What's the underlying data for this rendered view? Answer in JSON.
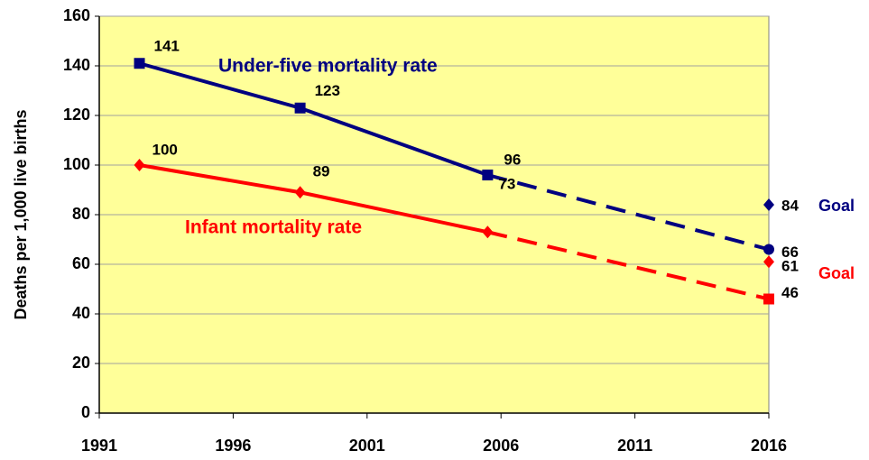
{
  "chart_data": {
    "type": "line",
    "y_label": "Deaths per 1,000 live births",
    "xlim": [
      1991,
      2016
    ],
    "xticks": [
      1991,
      1996,
      2001,
      2006,
      2011,
      2016
    ],
    "ylim": [
      0,
      160
    ],
    "yticks": [
      0,
      20,
      40,
      60,
      80,
      100,
      120,
      140,
      160
    ],
    "grid": true,
    "background": "#ffff99",
    "series": [
      {
        "name": "Under-five mortality rate",
        "color": "#000080",
        "x": [
          1992.5,
          1998.5,
          2005.5,
          2016
        ],
        "values": [
          141,
          123,
          96,
          66
        ],
        "markers": [
          "square",
          "square",
          "square",
          "circle"
        ],
        "dash_from": 2,
        "goal": {
          "label": "Goal",
          "value": 84,
          "marker": "diamond"
        }
      },
      {
        "name": "Infant mortality rate",
        "color": "#ff0000",
        "x": [
          1992.5,
          1998.5,
          2005.5,
          2016
        ],
        "values": [
          100,
          89,
          73,
          46
        ],
        "markers": [
          "diamond",
          "diamond",
          "diamond",
          "square"
        ],
        "dash_from": 2,
        "goal": {
          "label": "Goal",
          "value": 61,
          "marker": "diamond"
        }
      }
    ]
  }
}
